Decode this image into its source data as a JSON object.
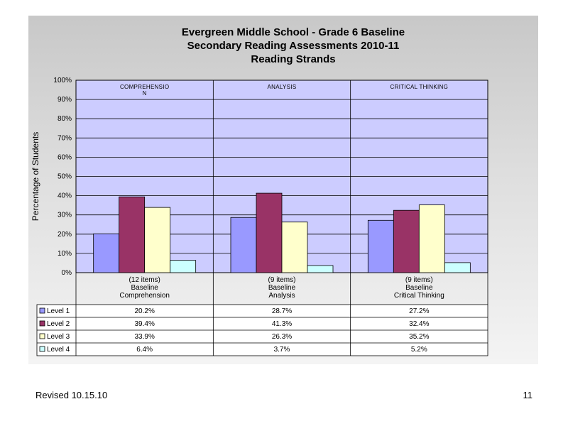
{
  "chart_data": {
    "type": "bar",
    "title": [
      "Evergreen Middle School - Grade 6 Baseline",
      "Secondary Reading Assessments 2010-11",
      "Reading Strands"
    ],
    "ylabel": "Percentage of Students",
    "ylim": [
      0,
      100
    ],
    "yticks": [
      "0%",
      "10%",
      "20%",
      "30%",
      "40%",
      "50%",
      "60%",
      "70%",
      "80%",
      "90%",
      "100%"
    ],
    "strand_labels": [
      "COMPREHENSIO N",
      "ANALYSIS",
      "CRITICAL THINKING"
    ],
    "categories": [
      [
        "(12 items)",
        "Baseline",
        "Comprehension"
      ],
      [
        "(9 items)",
        "Baseline",
        "Analysis"
      ],
      [
        "(9 items)",
        "Baseline",
        "Critical Thinking"
      ]
    ],
    "series": [
      {
        "name": "Level 1",
        "color": "#9999ff",
        "values": [
          20.2,
          28.7,
          27.2
        ],
        "labels": [
          "20.2%",
          "28.7%",
          "27.2%"
        ]
      },
      {
        "name": "Level 2",
        "color": "#993366",
        "values": [
          39.4,
          41.3,
          32.4
        ],
        "labels": [
          "39.4%",
          "41.3%",
          "32.4%"
        ]
      },
      {
        "name": "Level 3",
        "color": "#ffffcc",
        "values": [
          33.9,
          26.3,
          35.2
        ],
        "labels": [
          "33.9%",
          "26.3%",
          "35.2%"
        ]
      },
      {
        "name": "Level 4",
        "color": "#ccffff",
        "values": [
          6.4,
          3.7,
          5.2
        ],
        "labels": [
          "6.4%",
          "3.7%",
          "5.2%"
        ]
      }
    ],
    "plot_background": "#ccccff",
    "grid": true,
    "legend": "data-table"
  },
  "footer": {
    "revised": "Revised  10.15.10",
    "page_number": "11"
  }
}
